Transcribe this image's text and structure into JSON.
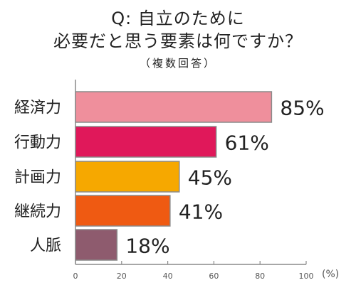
{
  "chart_data": {
    "type": "bar",
    "orientation": "horizontal",
    "title": "Q: 自立のために",
    "subtitle": "必要だと思う要素は何ですか？",
    "note": "（複数回答）",
    "unit": "(%)",
    "categories": [
      "経済力",
      "行動力",
      "計画力",
      "継続力",
      "人脈"
    ],
    "values": [
      85,
      61,
      45,
      41,
      18
    ],
    "value_labels": [
      "85%",
      "61%",
      "45%",
      "41%",
      "18%"
    ],
    "colors": [
      "#ef8f9c",
      "#e0185a",
      "#f6a800",
      "#ef5a12",
      "#8e5b6e"
    ],
    "xlim": [
      0,
      100
    ],
    "ticks": [
      0,
      20,
      40,
      60,
      80,
      100
    ],
    "tick_labels": [
      "0",
      "20",
      "40",
      "60",
      "80",
      "100"
    ],
    "grid": false
  }
}
